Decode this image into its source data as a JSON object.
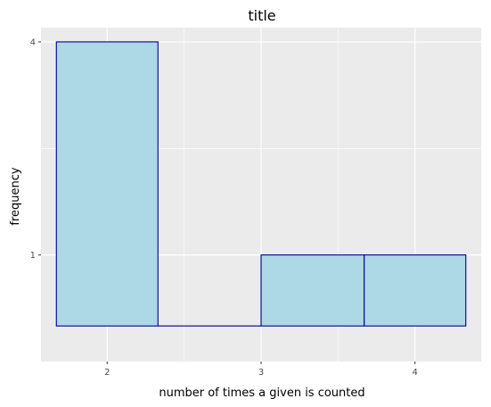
{
  "chart_data": {
    "type": "bar",
    "title": "title",
    "xlabel": "number of times a given is counted",
    "ylabel": "frequency",
    "bins": [
      {
        "x0": 1.67,
        "x1": 2.33,
        "count": 4
      },
      {
        "x0": 2.33,
        "x1": 3.0,
        "count": 0
      },
      {
        "x0": 3.0,
        "x1": 3.67,
        "count": 1
      },
      {
        "x0": 3.67,
        "x1": 4.33,
        "count": 1
      }
    ],
    "xticks": [
      {
        "value": 2,
        "label": "2"
      },
      {
        "value": 3,
        "label": "3"
      },
      {
        "value": 4,
        "label": "4"
      }
    ],
    "yticks": [
      {
        "value": 1,
        "label": "1"
      },
      {
        "value": 4,
        "label": "4"
      }
    ],
    "xlim": [
      1.57,
      4.43
    ],
    "ylim": [
      -0.5,
      4.2
    ],
    "grid": true,
    "colors": {
      "panel": "#ebebeb",
      "grid": "#ffffff",
      "bar_fill": "#add8e6",
      "bar_stroke": "#00008b"
    }
  }
}
